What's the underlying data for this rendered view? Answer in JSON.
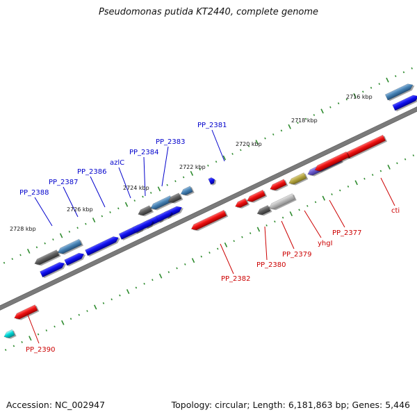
{
  "title": "Pseudomonas putida KT2440, complete genome",
  "footer": {
    "accession": "Accession: NC_002947",
    "summary": "Topology: circular; Length: 6,181,863 bp; Genes: 5,446"
  },
  "colors": {
    "backbone": "#7f7f7f",
    "ruler": "#2e8b2e",
    "forward_label": "#0000cc",
    "reverse_label": "#cc0000",
    "tick_label": "#111111",
    "blue": "#0000ee",
    "red": "#ee0000",
    "steel": "#4682b4",
    "gray": "#666666",
    "light_gray": "#b5b5b5",
    "olive": "#b5a642",
    "purple": "#6a5acd",
    "cyan": "#00cccc"
  },
  "ruler_labels": [
    "2716 kbp",
    "2718 kbp",
    "2720 kbp",
    "2722 kbp",
    "2724 kbp",
    "2726 kbp",
    "2728 kbp"
  ],
  "forward_labels": [
    "PP_2381",
    "PP_2383",
    "PP_2384",
    "azlC",
    "PP_2386",
    "PP_2387",
    "PP_2388"
  ],
  "reverse_labels": [
    "cti",
    "PP_2377",
    "yhgI",
    "PP_2379",
    "PP_2380",
    "PP_2382",
    "PP_2390"
  ],
  "feature_names": {
    "forward_labels": [
      "PP_2381",
      "PP_2383",
      "PP_2384",
      "azlC",
      "PP_2386",
      "PP_2387",
      "PP_2388"
    ],
    "reverse_labels": [
      "cti",
      "PP_2377",
      "yhgI",
      "PP_2379",
      "PP_2380",
      "PP_2382",
      "PP_2390"
    ]
  }
}
